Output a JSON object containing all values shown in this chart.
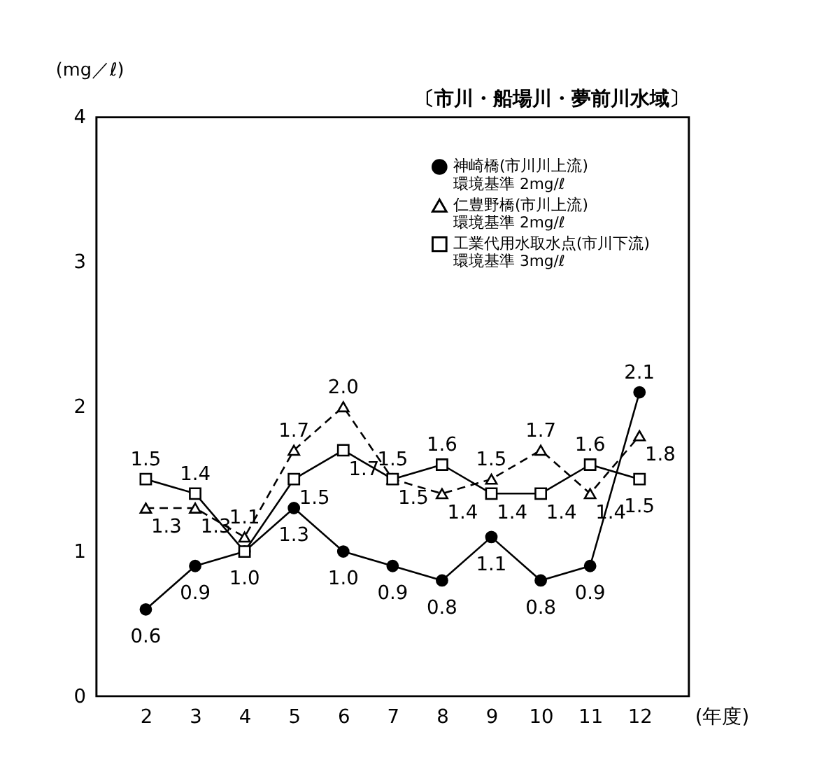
{
  "chart_data": {
    "type": "line",
    "xlabel": "(年度)",
    "ylabel": "(mg／ℓ)",
    "annotations": [
      "〔市川・船場川・夢前川水域〕"
    ],
    "x": [
      2,
      3,
      4,
      5,
      6,
      7,
      8,
      9,
      10,
      11,
      12
    ],
    "xlim": [
      1,
      13
    ],
    "xticks": [
      2,
      3,
      4,
      5,
      6,
      7,
      8,
      9,
      10,
      11,
      12
    ],
    "ylim": [
      0,
      4
    ],
    "yticks": [
      0,
      1,
      2,
      3,
      4
    ],
    "grid": false,
    "legend": "top right",
    "series": [
      {
        "name": "神崎橋(市川川上流)\n環境基準 2mg/ℓ",
        "color": "#000000",
        "marker": "circle",
        "line_style": "solid",
        "values": [
          0.6,
          0.9,
          1.0,
          1.3,
          1.0,
          0.9,
          0.8,
          1.1,
          0.8,
          0.9,
          2.1
        ],
        "value_labels": [
          "0.6",
          "0.9",
          "1.0",
          "1.3",
          "1.0",
          "0.9",
          "0.8",
          "1.1",
          "0.8",
          "0.9",
          "2.1"
        ]
      },
      {
        "name": "仁豊野橋(市川上流)\n環境基準 2mg/ℓ",
        "color": "#000000",
        "marker": "triangle",
        "line_style": "dashed",
        "values": [
          1.3,
          1.3,
          1.1,
          1.7,
          2.0,
          1.5,
          1.4,
          1.5,
          1.7,
          1.4,
          1.8
        ],
        "value_labels": [
          "1.3",
          "1.3",
          "1.1",
          "1.7",
          "2.0",
          "1.5",
          "1.4",
          "1.5",
          "1.7",
          "1.4",
          "1.8"
        ]
      },
      {
        "name": "工業代用水取水点(市川下流)\n環境基準 3mg/ℓ",
        "color": "#000000",
        "marker": "square",
        "line_style": "solid",
        "values": [
          1.5,
          1.4,
          1.0,
          1.5,
          1.7,
          1.5,
          1.6,
          1.4,
          1.4,
          1.6,
          1.5
        ],
        "value_labels": [
          "1.5",
          "1.4",
          null,
          "1.5",
          "1.7",
          "1.5",
          "1.6",
          "1.4",
          "1.4",
          "1.6",
          "1.5"
        ]
      }
    ]
  }
}
